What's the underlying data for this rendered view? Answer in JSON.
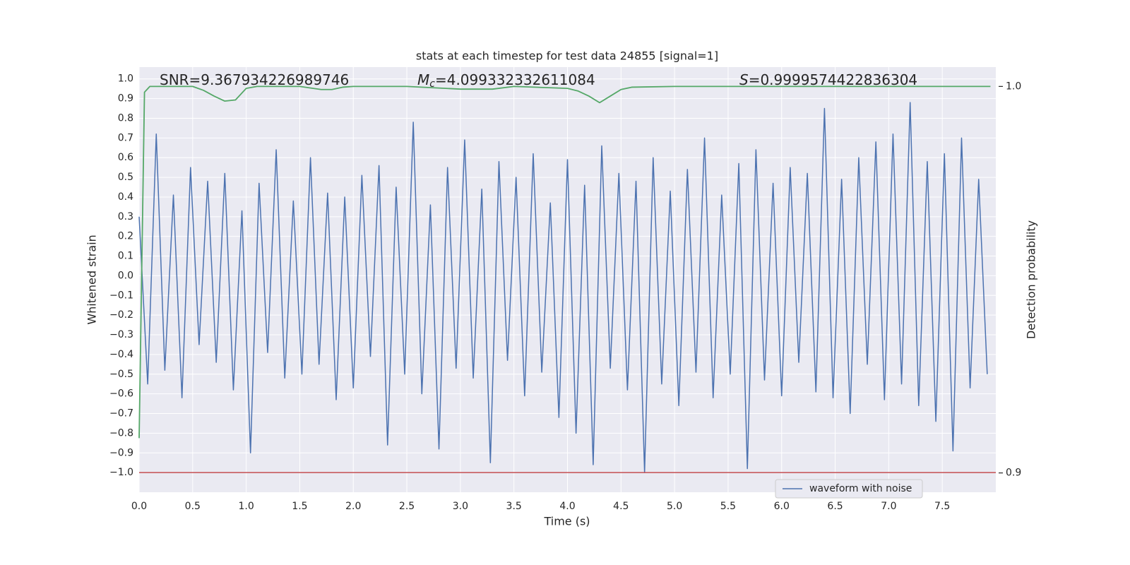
{
  "chart_data": {
    "type": "line",
    "title": "stats at each timestep for test data 24855 [signal=1]",
    "xlabel": "Time (s)",
    "ylabel": "Whitened strain",
    "y2label": "Detection probability",
    "annotations": [
      {
        "text": "SNR=9.367934226989746"
      },
      {
        "symbol": "M",
        "sub": "c",
        "text": "=4.099332332611084"
      },
      {
        "symbol": "S",
        "text": "=0.9999574422836304"
      }
    ],
    "xlim": [
      0,
      8
    ],
    "ylim": [
      -1.1,
      1.06
    ],
    "y2lim": [
      0.895,
      1.005
    ],
    "xticks": [
      {
        "value": 0,
        "label": "0.0"
      },
      0.5,
      {
        "value": 1,
        "label": "1.0"
      },
      1.5,
      {
        "value": 2,
        "label": "2.0"
      },
      2.5,
      {
        "value": 3,
        "label": "3.0"
      },
      3.5,
      {
        "value": 4,
        "label": "4.0"
      },
      4.5,
      {
        "value": 5,
        "label": "5.0"
      },
      5.5,
      {
        "value": 6,
        "label": "6.0"
      },
      6.5,
      {
        "value": 7,
        "label": "7.0"
      },
      7.5
    ],
    "yticks": [
      {
        "value": -1,
        "label": "−1.0"
      },
      {
        "value": -0.9,
        "label": "−0.9"
      },
      {
        "value": -0.8,
        "label": "−0.8"
      },
      {
        "value": -0.7,
        "label": "−0.7"
      },
      {
        "value": -0.6,
        "label": "−0.6"
      },
      {
        "value": -0.5,
        "label": "−0.5"
      },
      {
        "value": -0.4,
        "label": "−0.4"
      },
      {
        "value": -0.3,
        "label": "−0.3"
      },
      {
        "value": -0.2,
        "label": "−0.2"
      },
      {
        "value": -0.1,
        "label": "−0.1"
      },
      {
        "value": 0,
        "label": "0.0"
      },
      0.1,
      0.2,
      0.3,
      0.4,
      0.5,
      0.6,
      0.7,
      0.8,
      0.9,
      {
        "value": 1,
        "label": "1.0"
      }
    ],
    "y2ticks": [
      0.9,
      {
        "value": 1,
        "label": "1.0"
      }
    ],
    "grid": true,
    "legend": "lower right",
    "hline": {
      "y": -1,
      "color": "#c44e52"
    },
    "series": [
      {
        "name": "waveform with noise",
        "color": "#4c72b0",
        "x": [
          0,
          0.08,
          0.16,
          0.24,
          0.32,
          0.4,
          0.48,
          0.56,
          0.64,
          0.72,
          0.8,
          0.88,
          0.96,
          1.04,
          1.12,
          1.2,
          1.28,
          1.36,
          1.44,
          1.52,
          1.6,
          1.68,
          1.76,
          1.84,
          1.92,
          2,
          2.08,
          2.16,
          2.24,
          2.32,
          2.4,
          2.48,
          2.56,
          2.64,
          2.72,
          2.8,
          2.88,
          2.96,
          3.04,
          3.12,
          3.2,
          3.28,
          3.36,
          3.44,
          3.52,
          3.6,
          3.68,
          3.76,
          3.84,
          3.92,
          4,
          4.08,
          4.16,
          4.24,
          4.32,
          4.4,
          4.48,
          4.56,
          4.64,
          4.72,
          4.8,
          4.88,
          4.96,
          5.04,
          5.12,
          5.2,
          5.28,
          5.36,
          5.44,
          5.52,
          5.6,
          5.68,
          5.76,
          5.84,
          5.92,
          6,
          6.08,
          6.16,
          6.24,
          6.32,
          6.4,
          6.48,
          6.56,
          6.64,
          6.72,
          6.8,
          6.88,
          6.96,
          7.04,
          7.12,
          7.2,
          7.28,
          7.36,
          7.44,
          7.52,
          7.6,
          7.68,
          7.76,
          7.84,
          7.92
        ],
        "values": [
          0.3,
          -0.55,
          0.72,
          -0.48,
          0.41,
          -0.62,
          0.55,
          -0.35,
          0.48,
          -0.44,
          0.52,
          -0.58,
          0.33,
          -0.9,
          0.47,
          -0.39,
          0.64,
          -0.52,
          0.38,
          -0.5,
          0.6,
          -0.45,
          0.42,
          -0.63,
          0.4,
          -0.57,
          0.51,
          -0.41,
          0.56,
          -0.86,
          0.45,
          -0.5,
          0.78,
          -0.6,
          0.36,
          -0.88,
          0.55,
          -0.47,
          0.69,
          -0.52,
          0.44,
          -0.95,
          0.58,
          -0.43,
          0.5,
          -0.61,
          0.62,
          -0.49,
          0.37,
          -0.72,
          0.59,
          -0.8,
          0.46,
          -0.96,
          0.66,
          -0.47,
          0.52,
          -0.58,
          0.48,
          -1.0,
          0.6,
          -0.55,
          0.43,
          -0.66,
          0.54,
          -0.49,
          0.7,
          -0.62,
          0.41,
          -0.5,
          0.57,
          -0.98,
          0.64,
          -0.53,
          0.47,
          -0.61,
          0.55,
          -0.44,
          0.52,
          -0.59,
          0.85,
          -0.62,
          0.49,
          -0.7,
          0.6,
          -0.45,
          0.68,
          -0.63,
          0.72,
          -0.55,
          0.88,
          -0.66,
          0.58,
          -0.74,
          0.62,
          -0.89,
          0.7,
          -0.57,
          0.49,
          -0.5
        ]
      },
      {
        "color": "#55a868",
        "axis": "y2",
        "x": [
          0,
          0.05,
          0.1,
          0.5,
          0.6,
          0.7,
          0.8,
          0.9,
          1.0,
          1.1,
          1.5,
          1.7,
          1.8,
          1.9,
          2.0,
          2.5,
          3.0,
          3.3,
          3.5,
          4.0,
          4.1,
          4.2,
          4.3,
          4.4,
          4.5,
          4.6,
          5.0,
          7.95
        ],
        "values": [
          0.909,
          0.9985,
          1.0,
          1.0,
          0.999,
          0.9975,
          0.9962,
          0.9965,
          0.9995,
          1.0,
          1.0,
          0.9992,
          0.9992,
          0.9998,
          1.0,
          1.0,
          0.9993,
          0.9993,
          1.0,
          0.9995,
          0.9988,
          0.9975,
          0.9958,
          0.9975,
          0.9992,
          0.9998,
          1.0,
          1.0
        ]
      }
    ]
  }
}
